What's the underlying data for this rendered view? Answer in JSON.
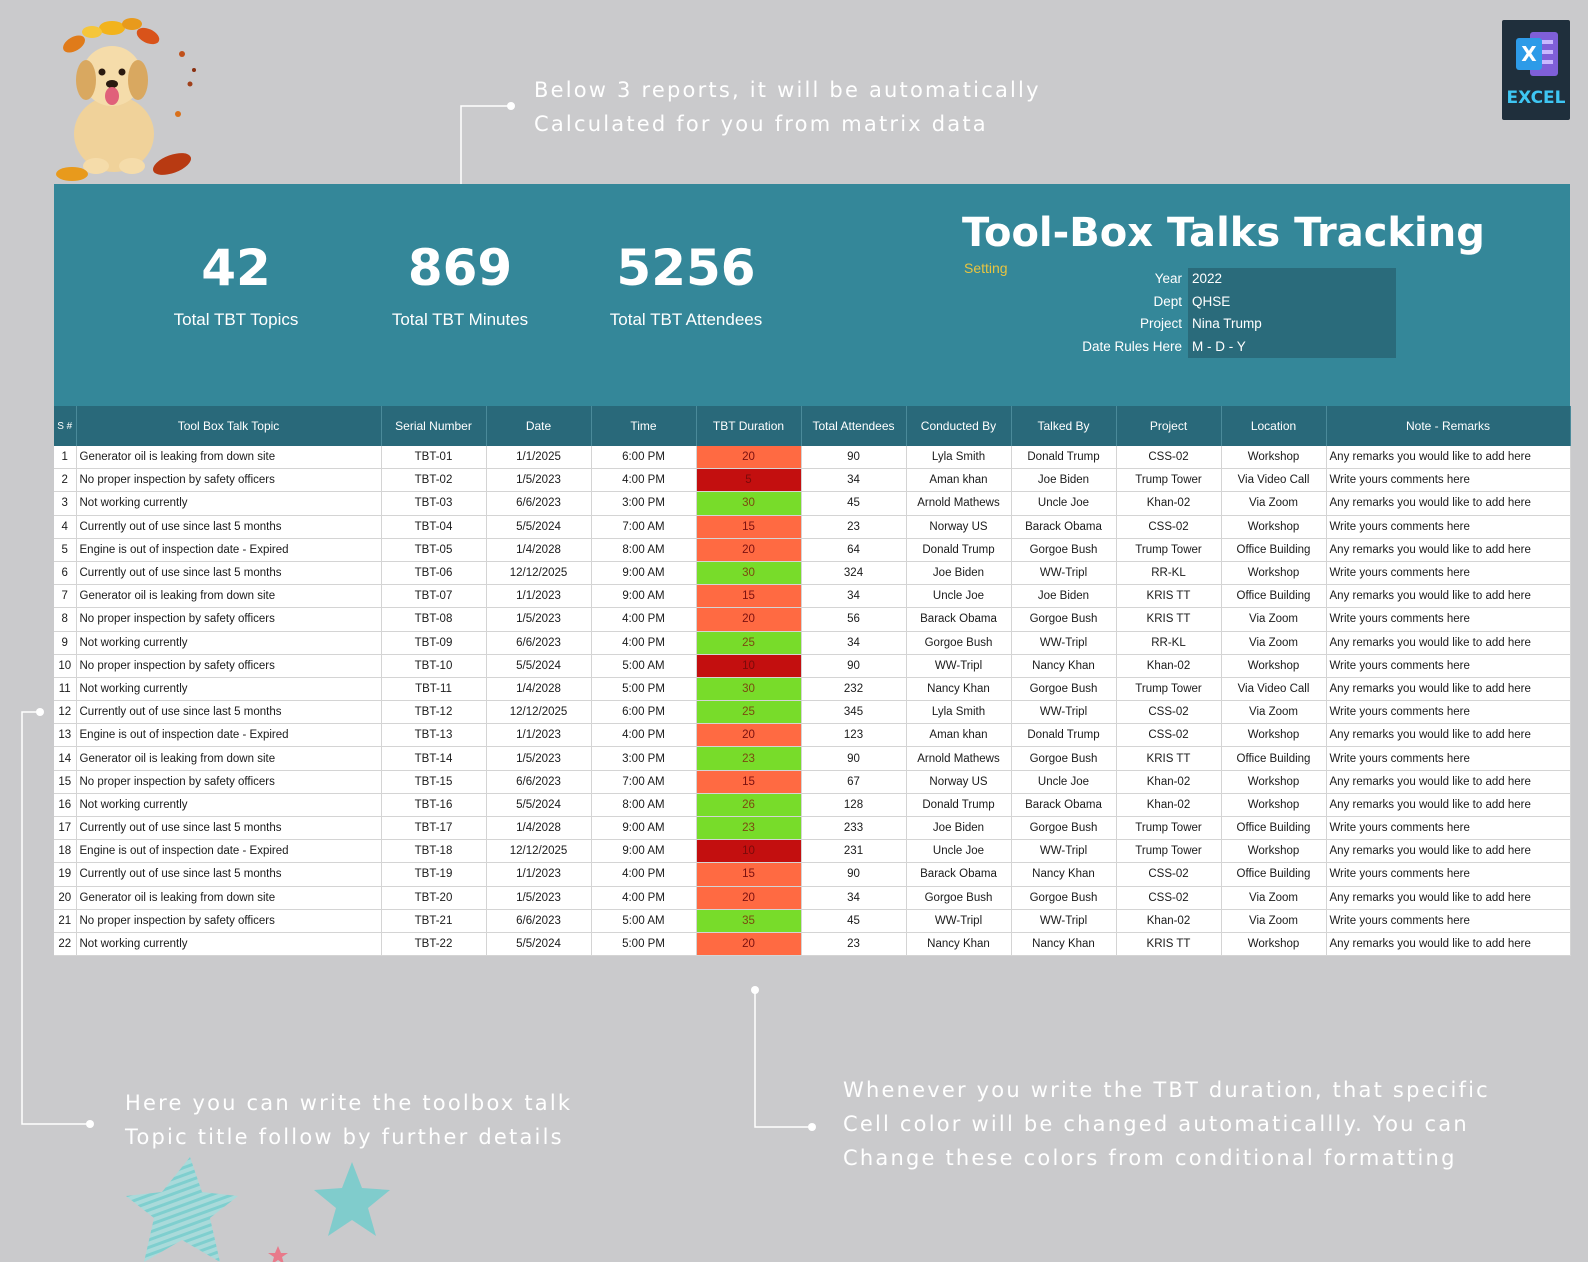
{
  "callouts": {
    "top": [
      "Below 3 reports, it will be automatically",
      "Calculated for you from matrix data"
    ],
    "left": [
      "Here you can write the toolbox talk",
      "Topic title follow by further details"
    ],
    "right": [
      "Whenever you write the TBT duration, that specific",
      "Cell color will be changed automaticallly. You can",
      "Change these colors from conditional formatting"
    ]
  },
  "badge": {
    "label": "EXCEL"
  },
  "kpis": [
    {
      "value": "42",
      "label": "Total TBT Topics"
    },
    {
      "value": "869",
      "label": "Total TBT Minutes"
    },
    {
      "value": "5256",
      "label": "Total TBT Attendees"
    }
  ],
  "header": {
    "title": "Tool-Box Talks Tracking",
    "setting_link": "Setting",
    "settings": [
      {
        "key": "Year",
        "value": "2022"
      },
      {
        "key": "Dept",
        "value": "QHSE"
      },
      {
        "key": "Project",
        "value": "Nina Trump"
      },
      {
        "key": "Date Rules Here",
        "value": "M - D - Y"
      }
    ]
  },
  "table": {
    "columns": [
      "S #",
      "Tool Box Talk Topic",
      "Serial Number",
      "Date",
      "Time",
      "TBT Duration",
      "Total Attendees",
      "Conducted By",
      "Talked By",
      "Project",
      "Location",
      "Note - Remarks"
    ],
    "rows": [
      [
        "1",
        "Generator oil is leaking from down site",
        "TBT-01",
        "1/1/2025",
        "6:00 PM",
        "20",
        "90",
        "Lyla Smith",
        "Donald Trump",
        "CSS-02",
        "Workshop",
        "Any remarks you would like to add here"
      ],
      [
        "2",
        "No proper inspection by safety officers",
        "TBT-02",
        "1/5/2023",
        "4:00 PM",
        "5",
        "34",
        "Aman khan",
        "Joe Biden",
        "Trump Tower",
        "Via Video Call",
        "Write yours comments here"
      ],
      [
        "3",
        "Not working currently",
        "TBT-03",
        "6/6/2023",
        "3:00 PM",
        "30",
        "45",
        "Arnold Mathews",
        "Uncle Joe",
        "Khan-02",
        "Via Zoom",
        "Any remarks you would like to add here"
      ],
      [
        "4",
        "Currently out of use since last 5 months",
        "TBT-04",
        "5/5/2024",
        "7:00 AM",
        "15",
        "23",
        "Norway US",
        "Barack Obama",
        "CSS-02",
        "Workshop",
        "Write yours comments here"
      ],
      [
        "5",
        "Engine is out of inspection date - Expired",
        "TBT-05",
        "1/4/2028",
        "8:00 AM",
        "20",
        "64",
        "Donald Trump",
        "Gorgoe Bush",
        "Trump Tower",
        "Office Building",
        "Any remarks you would like to add here"
      ],
      [
        "6",
        "Currently out of use since last 5 months",
        "TBT-06",
        "12/12/2025",
        "9:00 AM",
        "30",
        "324",
        "Joe Biden",
        "WW-Tripl",
        "RR-KL",
        "Workshop",
        "Write yours comments here"
      ],
      [
        "7",
        "Generator oil is leaking from down site",
        "TBT-07",
        "1/1/2023",
        "9:00 AM",
        "15",
        "34",
        "Uncle Joe",
        "Joe Biden",
        "KRIS TT",
        "Office Building",
        "Any remarks you would like to add here"
      ],
      [
        "8",
        "No proper inspection by safety officers",
        "TBT-08",
        "1/5/2023",
        "4:00 PM",
        "20",
        "56",
        "Barack Obama",
        "Gorgoe Bush",
        "KRIS TT",
        "Via Zoom",
        "Write yours comments here"
      ],
      [
        "9",
        "Not working currently",
        "TBT-09",
        "6/6/2023",
        "4:00 PM",
        "25",
        "34",
        "Gorgoe Bush",
        "WW-Tripl",
        "RR-KL",
        "Via Zoom",
        "Any remarks you would like to add here"
      ],
      [
        "10",
        "No proper inspection by safety officers",
        "TBT-10",
        "5/5/2024",
        "5:00 AM",
        "10",
        "90",
        "WW-Tripl",
        "Nancy Khan",
        "Khan-02",
        "Workshop",
        "Write yours comments here"
      ],
      [
        "11",
        "Not working currently",
        "TBT-11",
        "1/4/2028",
        "5:00 PM",
        "30",
        "232",
        "Nancy Khan",
        "Gorgoe Bush",
        "Trump Tower",
        "Via Video Call",
        "Any remarks you would like to add here"
      ],
      [
        "12",
        "Currently out of use since last 5 months",
        "TBT-12",
        "12/12/2025",
        "6:00 PM",
        "25",
        "345",
        "Lyla Smith",
        "WW-Tripl",
        "CSS-02",
        "Via Zoom",
        "Write yours comments here"
      ],
      [
        "13",
        "Engine is out of inspection date - Expired",
        "TBT-13",
        "1/1/2023",
        "4:00 PM",
        "20",
        "123",
        "Aman khan",
        "Donald Trump",
        "CSS-02",
        "Workshop",
        "Any remarks you would like to add here"
      ],
      [
        "14",
        "Generator oil is leaking from down site",
        "TBT-14",
        "1/5/2023",
        "3:00 PM",
        "23",
        "90",
        "Arnold Mathews",
        "Gorgoe Bush",
        "KRIS TT",
        "Office Building",
        "Write yours comments here"
      ],
      [
        "15",
        "No proper inspection by safety officers",
        "TBT-15",
        "6/6/2023",
        "7:00 AM",
        "15",
        "67",
        "Norway US",
        "Uncle Joe",
        "Khan-02",
        "Workshop",
        "Any remarks you would like to add here"
      ],
      [
        "16",
        "Not working currently",
        "TBT-16",
        "5/5/2024",
        "8:00 AM",
        "26",
        "128",
        "Donald Trump",
        "Barack Obama",
        "Khan-02",
        "Workshop",
        "Any remarks you would like to add here"
      ],
      [
        "17",
        "Currently out of use since last 5 months",
        "TBT-17",
        "1/4/2028",
        "9:00 AM",
        "23",
        "233",
        "Joe Biden",
        "Gorgoe Bush",
        "Trump Tower",
        "Office Building",
        "Write yours comments here"
      ],
      [
        "18",
        "Engine is out of inspection date - Expired",
        "TBT-18",
        "12/12/2025",
        "9:00 AM",
        "10",
        "231",
        "Uncle Joe",
        "WW-Tripl",
        "Trump Tower",
        "Workshop",
        "Any remarks you would like to add here"
      ],
      [
        "19",
        "Currently out of use since last 5 months",
        "TBT-19",
        "1/1/2023",
        "4:00 PM",
        "15",
        "90",
        "Barack Obama",
        "Nancy Khan",
        "CSS-02",
        "Office Building",
        "Write yours comments here"
      ],
      [
        "20",
        "Generator oil is leaking from down site",
        "TBT-20",
        "1/5/2023",
        "4:00 PM",
        "20",
        "34",
        "Gorgoe Bush",
        "Gorgoe Bush",
        "CSS-02",
        "Via Zoom",
        "Any remarks you would like to add here"
      ],
      [
        "21",
        "No proper inspection by safety officers",
        "TBT-21",
        "6/6/2023",
        "5:00 AM",
        "35",
        "45",
        "WW-Tripl",
        "WW-Tripl",
        "Khan-02",
        "Via Zoom",
        "Write yours comments here"
      ],
      [
        "22",
        "Not working currently",
        "TBT-22",
        "5/5/2024",
        "5:00 PM",
        "20",
        "23",
        "Nancy Khan",
        "Nancy Khan",
        "KRIS TT",
        "Workshop",
        "Any remarks you would like to add here"
      ]
    ]
  },
  "colors": {
    "background": "#cacacc",
    "banner": "#348799",
    "table_header": "#29697a",
    "setting_cell": "#2a6b7b",
    "setting_link": "#e8c440",
    "duration_high": "#78dc2a",
    "duration_mid": "#ff6a42",
    "duration_low": "#c30f0f"
  },
  "icons": [
    "dog-with-autumn-leaves-illustration",
    "excel-icon",
    "decorative-star-icon"
  ]
}
